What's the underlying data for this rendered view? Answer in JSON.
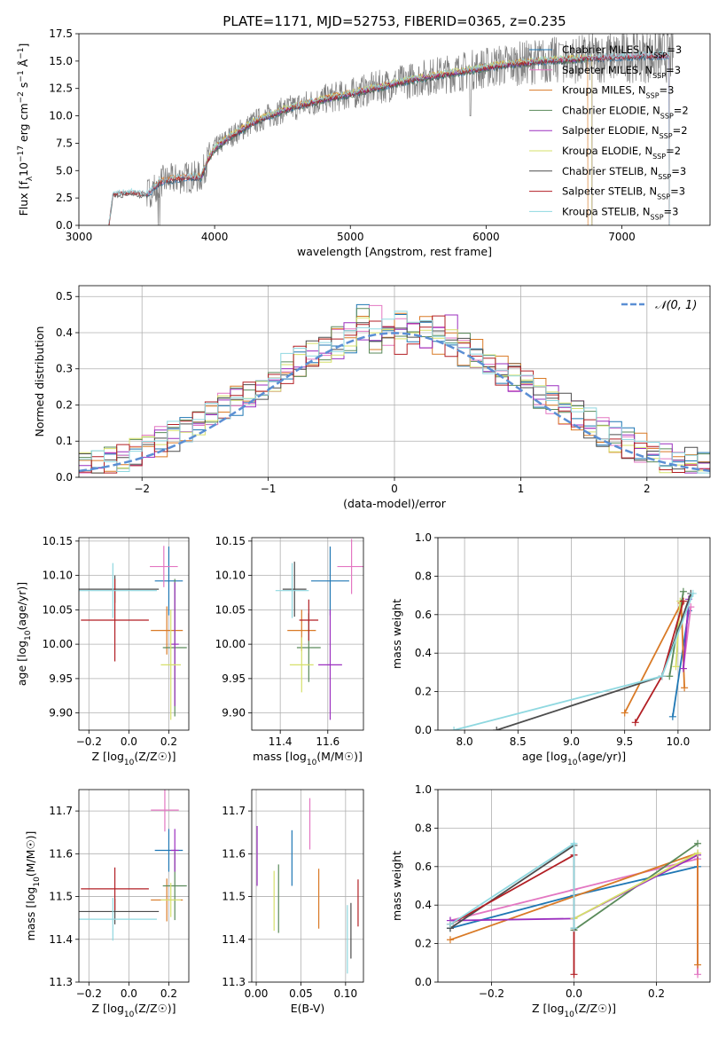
{
  "figure_title": "PLATE=1171, MJD=52753, FIBERID=0365, z=0.235",
  "series_colors": [
    "#1f77b4",
    "#e377c2",
    "#d97a26",
    "#5a8a5a",
    "#9b2fbf",
    "#d6e06a",
    "#4d4d4d",
    "#b21f24",
    "#8fd8e0"
  ],
  "normal_color": "#5b8fd4",
  "chart_data": [
    {
      "id": "spectrum",
      "type": "line",
      "xlabel": "wavelength [Angstrom, rest frame]",
      "ylabel": "Flux [f_λ 10^-17 erg cm^-2 s^-1 Å^-1]",
      "xlim": [
        3000,
        7650
      ],
      "ylim": [
        0,
        17.5
      ],
      "xticks": [
        "3000",
        "4000",
        "5000",
        "6000",
        "7000"
      ],
      "yticks": [
        "0.0",
        "2.5",
        "5.0",
        "7.5",
        "10.0",
        "12.5",
        "15.0",
        "17.5"
      ],
      "grid": false,
      "legend_position": "upper-right",
      "data_color": "#808080",
      "continuum": {
        "x": [
          3220,
          3250,
          3400,
          3500,
          3600,
          3700,
          3800,
          3900,
          3950,
          4000,
          4100,
          4300,
          4500,
          4800,
          5000,
          5200,
          5500,
          5800,
          6100,
          6400,
          6700,
          7000,
          7300,
          7380
        ],
        "y": [
          0.0,
          2.8,
          3.0,
          2.8,
          4.0,
          4.2,
          4.4,
          4.4,
          6.0,
          7.0,
          8.0,
          9.5,
          10.5,
          11.5,
          12.0,
          12.6,
          13.4,
          14.0,
          14.6,
          15.0,
          15.2,
          15.4,
          15.5,
          15.6
        ]
      },
      "series": [
        {
          "name": "Chabrier MILES, N_SSP=3",
          "base": "Chabrier MILES, N",
          "sub": "SSP",
          "tail": "=3",
          "color": "#1f77b4"
        },
        {
          "name": "Salpeter MILES, N_SSP=3",
          "base": "Salpeter MILES, N",
          "sub": "SSP",
          "tail": "=3",
          "color": "#e377c2"
        },
        {
          "name": "Kroupa MILES, N_SSP=3",
          "base": "Kroupa MILES, N",
          "sub": "SSP",
          "tail": "=3",
          "color": "#d97a26"
        },
        {
          "name": "Chabrier ELODIE, N_SSP=2",
          "base": "Chabrier ELODIE, N",
          "sub": "SSP",
          "tail": "=2",
          "color": "#5a8a5a"
        },
        {
          "name": "Salpeter ELODIE, N_SSP=2",
          "base": "Salpeter ELODIE, N",
          "sub": "SSP",
          "tail": "=2",
          "color": "#9b2fbf"
        },
        {
          "name": "Kroupa ELODIE, N_SSP=2",
          "base": "Kroupa ELODIE, N",
          "sub": "SSP",
          "tail": "=2",
          "color": "#d6e06a"
        },
        {
          "name": "Chabrier STELIB, N_SSP=3",
          "base": "Chabrier STELIB, N",
          "sub": "SSP",
          "tail": "=3",
          "color": "#4d4d4d"
        },
        {
          "name": "Salpeter STELIB, N_SSP=3",
          "base": "Salpeter STELIB, N",
          "sub": "SSP",
          "tail": "=3",
          "color": "#b21f24"
        },
        {
          "name": "Kroupa STELIB, N_SSP=3",
          "base": "Kroupa STELIB, N",
          "sub": "SSP",
          "tail": "=3",
          "color": "#8fd8e0"
        }
      ],
      "model_ranges": [
        [
          3500,
          7350
        ],
        [
          3500,
          7350
        ],
        [
          3550,
          6750
        ],
        [
          3900,
          6780
        ],
        [
          3900,
          6780
        ],
        [
          3900,
          6780
        ],
        [
          3220,
          7350
        ],
        [
          3220,
          7350
        ],
        [
          3220,
          7350
        ]
      ]
    },
    {
      "id": "residuals",
      "type": "step-histogram",
      "xlabel": "(data-model)/error",
      "ylabel": "Normed distribution",
      "xlim": [
        -2.5,
        2.5
      ],
      "ylim": [
        0,
        0.53
      ],
      "xticks": [
        "−2",
        "−1",
        "0",
        "1",
        "2"
      ],
      "yticks": [
        "0.0",
        "0.1",
        "0.2",
        "0.3",
        "0.4",
        "0.5"
      ],
      "grid": true,
      "bin_width": 0.1,
      "bin_start": -2.5,
      "normal_curve": {
        "label": "𝒩(0, 1)",
        "x_range": [
          -2.5,
          2.5
        ]
      },
      "legend_position": "upper-right"
    },
    {
      "id": "age-vs-Z",
      "type": "errorbar",
      "xlabel": "Z [log10(Z/Z☉)]",
      "ylabel": "age  [log10(age/yr)]",
      "xlim": [
        -0.25,
        0.3
      ],
      "ylim": [
        9.875,
        10.155
      ],
      "xticks": [
        "−0.2",
        "0.0",
        "0.2"
      ],
      "yticks": [
        "9.90",
        "9.95",
        "10.00",
        "10.05",
        "10.10",
        "10.15"
      ],
      "grid": true,
      "points": [
        {
          "x": 0.2,
          "xerr": 0.07,
          "y": 10.092,
          "yerr": 0.05
        },
        {
          "x": 0.175,
          "xerr": 0.07,
          "y": 10.113,
          "yerr": 0.03
        },
        {
          "x": 0.19,
          "xerr": 0.08,
          "y": 10.02,
          "yerr": 0.035
        },
        {
          "x": 0.23,
          "xerr": 0.06,
          "y": 9.995,
          "yerr": 0.1
        },
        {
          "x": 0.23,
          "xerr": 0.02,
          "y": 10.0,
          "yerr": 0.09
        },
        {
          "x": 0.21,
          "xerr": 0.05,
          "y": 9.97,
          "yerr": 0.08
        },
        {
          "x": -0.07,
          "xerr": 0.22,
          "y": 10.08,
          "yerr": 0.02
        },
        {
          "x": -0.07,
          "xerr": 0.17,
          "y": 10.035,
          "yerr": 0.06
        },
        {
          "x": -0.08,
          "xerr": 0.22,
          "y": 10.078,
          "yerr": 0.04
        }
      ]
    },
    {
      "id": "age-vs-mass",
      "type": "errorbar",
      "xlabel": "mass [log10(M/M☉)]",
      "ylabel": "",
      "xlim": [
        11.28,
        11.75
      ],
      "ylim": [
        9.875,
        10.155
      ],
      "xticks": [
        "11.4",
        "11.6"
      ],
      "yticks": [
        "9.90",
        "9.95",
        "10.00",
        "10.05",
        "10.10",
        "10.15"
      ],
      "grid": true,
      "points": [
        {
          "x": 11.61,
          "xerr": 0.08,
          "y": 10.092,
          "yerr": 0.05
        },
        {
          "x": 11.7,
          "xerr": 0.06,
          "y": 10.113,
          "yerr": 0.04
        },
        {
          "x": 11.49,
          "xerr": 0.06,
          "y": 10.02,
          "yerr": 0.03
        },
        {
          "x": 11.52,
          "xerr": 0.05,
          "y": 9.995,
          "yerr": 0.05
        },
        {
          "x": 11.61,
          "xerr": 0.05,
          "y": 9.97,
          "yerr": 0.08
        },
        {
          "x": 11.49,
          "xerr": 0.05,
          "y": 9.97,
          "yerr": 0.04
        },
        {
          "x": 11.46,
          "xerr": 0.05,
          "y": 10.08,
          "yerr": 0.04
        },
        {
          "x": 11.52,
          "xerr": 0.04,
          "y": 10.035,
          "yerr": 0.03
        },
        {
          "x": 11.45,
          "xerr": 0.07,
          "y": 10.078,
          "yerr": 0.04
        }
      ]
    },
    {
      "id": "weight-vs-age",
      "type": "line",
      "xlabel": "age  [log10(age/yr)]",
      "ylabel": "mass weight",
      "xlim": [
        7.75,
        10.3
      ],
      "ylim": [
        0,
        1.0
      ],
      "xticks": [
        "8.0",
        "8.5",
        "9.0",
        "9.5",
        "10.0"
      ],
      "yticks": [
        "0.0",
        "0.2",
        "0.4",
        "0.6",
        "0.8",
        "1.0"
      ],
      "grid": true,
      "series": [
        {
          "x": [
            9.95,
            10.1
          ],
          "y": [
            0.07,
            0.62
          ]
        },
        {
          "x": [
            10.05,
            10.12
          ],
          "y": [
            0.32,
            0.64
          ]
        },
        {
          "x": [
            9.5,
            10.03,
            10.06
          ],
          "y": [
            0.09,
            0.66,
            0.22
          ]
        },
        {
          "x": [
            9.92,
            10.05
          ],
          "y": [
            0.28,
            0.72
          ]
        },
        {
          "x": [
            10.05,
            10.1
          ],
          "y": [
            0.32,
            0.68
          ]
        },
        {
          "x": [
            9.98,
            10.02
          ],
          "y": [
            0.33,
            0.67
          ]
        },
        {
          "x": [
            8.3,
            9.85,
            10.12
          ],
          "y": [
            0.0,
            0.28,
            0.71
          ]
        },
        {
          "x": [
            9.6,
            9.85,
            10.05
          ],
          "y": [
            0.04,
            0.28,
            0.67
          ]
        },
        {
          "x": [
            7.9,
            9.85,
            10.14
          ],
          "y": [
            0.0,
            0.28,
            0.71
          ]
        }
      ]
    },
    {
      "id": "mass-vs-Z",
      "type": "errorbar",
      "xlabel": "Z [log10(Z/Z☉)]",
      "ylabel": "mass [log10(M/M☉)]",
      "xlim": [
        -0.25,
        0.3
      ],
      "ylim": [
        11.3,
        11.75
      ],
      "xticks": [
        "−0.2",
        "0.0",
        "0.2"
      ],
      "yticks": [
        "11.3",
        "11.4",
        "11.5",
        "11.6",
        "11.7"
      ],
      "grid": true,
      "points": [
        {
          "x": 0.2,
          "xerr": 0.07,
          "y": 11.608,
          "yerr": 0.05
        },
        {
          "x": 0.18,
          "xerr": 0.07,
          "y": 11.702,
          "yerr": 0.05
        },
        {
          "x": 0.19,
          "xerr": 0.08,
          "y": 11.492,
          "yerr": 0.05
        },
        {
          "x": 0.23,
          "xerr": 0.06,
          "y": 11.525,
          "yerr": 0.08
        },
        {
          "x": 0.23,
          "xerr": 0.02,
          "y": 11.608,
          "yerr": 0.05
        },
        {
          "x": 0.21,
          "xerr": 0.05,
          "y": 11.492,
          "yerr": 0.04
        },
        {
          "x": -0.07,
          "xerr": 0.22,
          "y": 11.465,
          "yerr": 0.03
        },
        {
          "x": -0.07,
          "xerr": 0.17,
          "y": 11.518,
          "yerr": 0.05
        },
        {
          "x": -0.08,
          "xerr": 0.22,
          "y": 11.447,
          "yerr": 0.05
        }
      ]
    },
    {
      "id": "mass-vs-EBV",
      "type": "errorbar",
      "xlabel": "E(B-V)",
      "ylabel": "",
      "xlim": [
        -0.005,
        0.12
      ],
      "ylim": [
        11.3,
        11.75
      ],
      "xticks": [
        "0.00",
        "0.05",
        "0.10"
      ],
      "yticks": [
        "11.3",
        "11.4",
        "11.5",
        "11.6",
        "11.7"
      ],
      "grid": true,
      "points": [
        {
          "x": 0.04,
          "xerr": 0,
          "y": 11.59,
          "yerr": 0.065
        },
        {
          "x": 0.06,
          "xerr": 0,
          "y": 11.67,
          "yerr": 0.06
        },
        {
          "x": 0.07,
          "xerr": 0,
          "y": 11.495,
          "yerr": 0.07
        },
        {
          "x": 0.025,
          "xerr": 0,
          "y": 11.495,
          "yerr": 0.08
        },
        {
          "x": 0.001,
          "xerr": 0,
          "y": 11.595,
          "yerr": 0.07
        },
        {
          "x": 0.02,
          "xerr": 0,
          "y": 11.49,
          "yerr": 0.07
        },
        {
          "x": 0.106,
          "xerr": 0,
          "y": 11.42,
          "yerr": 0.065
        },
        {
          "x": 0.114,
          "xerr": 0,
          "y": 11.485,
          "yerr": 0.055
        },
        {
          "x": 0.102,
          "xerr": 0,
          "y": 11.4,
          "yerr": 0.08
        }
      ]
    },
    {
      "id": "weight-vs-Z",
      "type": "line",
      "xlabel": "Z [log10(Z/Z☉)]",
      "ylabel": "mass weight",
      "xlim": [
        -0.33,
        0.33
      ],
      "ylim": [
        0,
        1.0
      ],
      "xticks": [
        "−0.2",
        "0.0",
        "0.2"
      ],
      "yticks": [
        "0.0",
        "0.2",
        "0.4",
        "0.6",
        "0.8",
        "1.0"
      ],
      "grid": true,
      "series": [
        {
          "x": [
            -0.3,
            0.0,
            0.3
          ],
          "y": [
            0.28,
            0.45,
            0.6
          ]
        },
        {
          "x": [
            -0.3,
            0.0,
            0.3,
            0.3
          ],
          "y": [
            0.32,
            0.48,
            0.64,
            0.04
          ]
        },
        {
          "x": [
            -0.3,
            0.3,
            0.3
          ],
          "y": [
            0.22,
            0.67,
            0.09
          ]
        },
        {
          "x": [
            0.0,
            0.3
          ],
          "y": [
            0.27,
            0.72
          ]
        },
        {
          "x": [
            -0.3,
            0.0,
            0.3
          ],
          "y": [
            0.32,
            0.33,
            0.66
          ]
        },
        {
          "x": [
            0.0,
            0.3
          ],
          "y": [
            0.33,
            0.67
          ]
        },
        {
          "x": [
            -0.3,
            0.0,
            0.0
          ],
          "y": [
            0.28,
            0.71,
            0.28
          ]
        },
        {
          "x": [
            -0.3,
            0.0,
            0.0
          ],
          "y": [
            0.3,
            0.66,
            0.04
          ]
        },
        {
          "x": [
            -0.3,
            0.0,
            0.0
          ],
          "y": [
            0.3,
            0.72,
            0.28
          ]
        }
      ]
    }
  ]
}
